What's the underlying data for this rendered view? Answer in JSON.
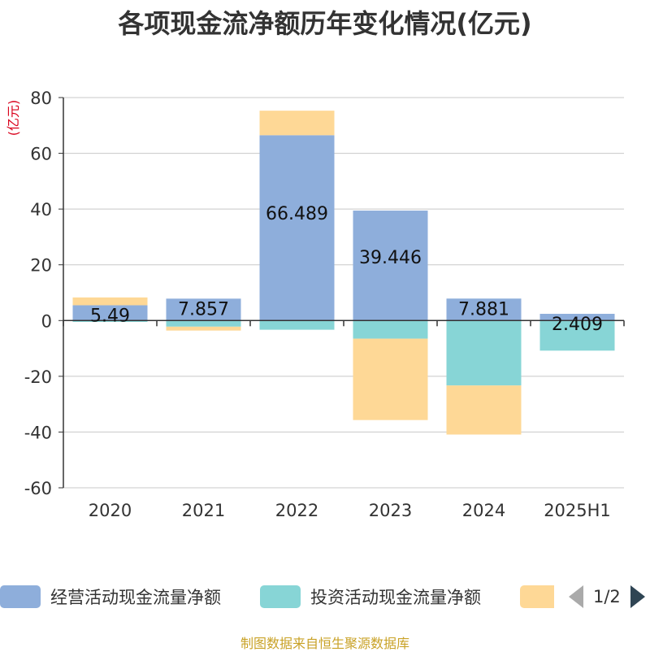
{
  "chart_data": {
    "type": "bar",
    "stacked": true,
    "title": "各项现金流净额历年变化情况(亿元)",
    "ylabel": "(亿元)",
    "categories": [
      "2020",
      "2021",
      "2022",
      "2023",
      "2024",
      "2025H1"
    ],
    "ylim": [
      -60,
      80
    ],
    "yticks": [
      80,
      60,
      40,
      20,
      0,
      -20,
      -40,
      -60
    ],
    "grid": true,
    "legend_position": "bottom",
    "series": [
      {
        "name": "经营活动现金流量净额",
        "color": "#8eaedb",
        "values": [
          5.49,
          7.857,
          66.489,
          39.446,
          7.881,
          2.409
        ],
        "data_labels": [
          "5.49",
          "7.857",
          "66.489",
          "39.446",
          "7.881",
          "2.409"
        ]
      },
      {
        "name": "投资活动现金流量净额",
        "color": "#87d5d6",
        "values": [
          -0.5,
          -2.2,
          -3.3,
          -6.5,
          -23.3,
          -10.8
        ]
      },
      {
        "name": "",
        "color": "#fed896",
        "values": [
          2.8,
          -1.4,
          8.8,
          -29.2,
          -17.6,
          0
        ]
      }
    ]
  },
  "legend": {
    "page": "1/2"
  },
  "source": "制图数据来自恒生聚源数据库"
}
